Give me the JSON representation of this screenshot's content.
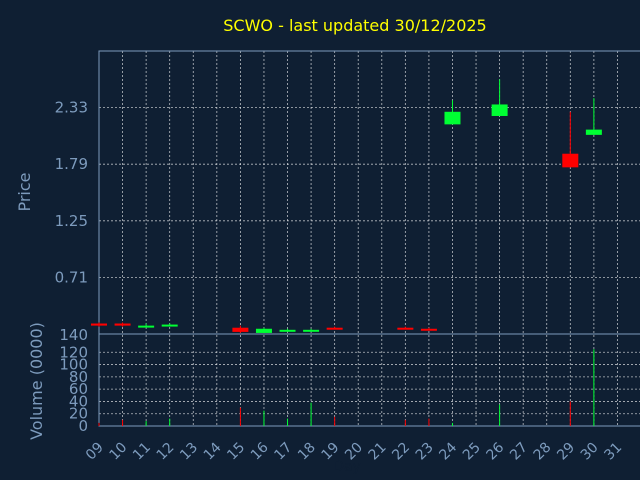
{
  "chart_data": {
    "type": "candlestick",
    "title": "SCWO - last updated 30/12/2025",
    "xlabel": "Day",
    "ylabel": "Price",
    "volume_label": "Volume (0000)",
    "x_ticks": [
      "09",
      "10",
      "11",
      "12",
      "13",
      "14",
      "15",
      "16",
      "17",
      "18",
      "19",
      "20",
      "21",
      "22",
      "23",
      "24",
      "25",
      "26",
      "27",
      "28",
      "29",
      "30",
      "31"
    ],
    "price_ticks": [
      "2.33",
      "1.79",
      "1.25",
      "0.71"
    ],
    "price_tick_values": [
      2.33,
      1.79,
      1.25,
      0.71
    ],
    "volume_ticks": [
      "140",
      "120",
      "100",
      "80",
      "60",
      "40",
      "20",
      "0"
    ],
    "volume_tick_values": [
      140,
      120,
      100,
      80,
      60,
      40,
      20,
      0
    ],
    "ylim": [
      0.17,
      2.87
    ],
    "volume_ylim": [
      0,
      140
    ],
    "grid": true,
    "colors": {
      "up": "#00ff33",
      "down": "#ff0000",
      "background": "#0f1f33",
      "title": "#ffff00",
      "axis": "#7d9bbd"
    },
    "candles": [
      {
        "day": 9,
        "open": 0.27,
        "high": 0.28,
        "low": 0.24,
        "close": 0.25,
        "volume": 5
      },
      {
        "day": 10,
        "open": 0.27,
        "high": 0.28,
        "low": 0.24,
        "close": 0.25,
        "volume": 10
      },
      {
        "day": 11,
        "open": 0.24,
        "high": 0.27,
        "low": 0.24,
        "close": 0.25,
        "volume": 8
      },
      {
        "day": 12,
        "open": 0.25,
        "high": 0.27,
        "low": 0.25,
        "close": 0.26,
        "volume": 12
      },
      {
        "day": 15,
        "open": 0.23,
        "high": 0.25,
        "low": 0.18,
        "close": 0.19,
        "volume": 30
      },
      {
        "day": 16,
        "open": 0.18,
        "high": 0.23,
        "low": 0.18,
        "close": 0.22,
        "volume": 25
      },
      {
        "day": 17,
        "open": 0.21,
        "high": 0.22,
        "low": 0.2,
        "close": 0.21,
        "volume": 12
      },
      {
        "day": 18,
        "open": 0.2,
        "high": 0.22,
        "low": 0.2,
        "close": 0.21,
        "volume": 38
      },
      {
        "day": 19,
        "open": 0.23,
        "high": 0.24,
        "low": 0.22,
        "close": 0.22,
        "volume": 15
      },
      {
        "day": 22,
        "open": 0.23,
        "high": 0.24,
        "low": 0.22,
        "close": 0.22,
        "volume": 10
      },
      {
        "day": 23,
        "open": 0.22,
        "high": 0.23,
        "low": 0.21,
        "close": 0.21,
        "volume": 12
      },
      {
        "day": 24,
        "open": 2.17,
        "high": 2.4,
        "low": 2.17,
        "close": 2.29,
        "volume": 5
      },
      {
        "day": 26,
        "open": 2.25,
        "high": 2.6,
        "low": 2.25,
        "close": 2.36,
        "volume": 35
      },
      {
        "day": 29,
        "open": 1.89,
        "high": 2.29,
        "low": 1.76,
        "close": 1.76,
        "volume": 40
      },
      {
        "day": 30,
        "open": 2.07,
        "high": 2.42,
        "low": 2.07,
        "close": 2.12,
        "volume": 125
      }
    ]
  }
}
